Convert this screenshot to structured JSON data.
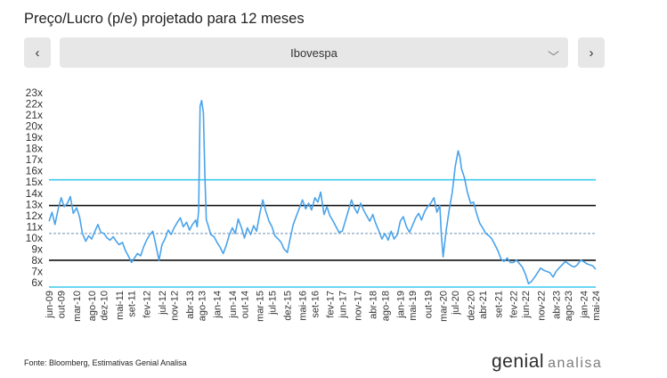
{
  "page": {
    "title": "Preço/Lucro (p/e) projetado para 12 meses"
  },
  "controls": {
    "prev_label": "‹",
    "next_label": "›",
    "prev_icon": "chevron-left-icon",
    "next_icon": "chevron-right-icon",
    "select_value": "Ibovespa",
    "select_icon": "chevron-down-icon"
  },
  "footer": {
    "source": "Fonte: Bloomberg, Estimativas Genial Analisa",
    "logo_main": "genial",
    "logo_sub": "analisa"
  },
  "chart_data": {
    "type": "line",
    "ylim": [
      6,
      23
    ],
    "yticks": [
      "23x",
      "22x",
      "21x",
      "20x",
      "19x",
      "18x",
      "17x",
      "16x",
      "15x",
      "14x",
      "13x",
      "12x",
      "11x",
      "10x",
      "9x",
      "8x",
      "7x",
      "6x"
    ],
    "ytick_values": [
      23,
      22,
      21,
      20,
      19,
      18,
      17,
      16,
      15,
      14,
      13,
      12,
      11,
      10,
      9,
      8,
      7,
      6
    ],
    "xlim": [
      2009.417,
      2024.333
    ],
    "xticks": [
      "jun-09",
      "out-09",
      "mar-10",
      "ago-10",
      "dez-10",
      "mai-11",
      "set-11",
      "fev-12",
      "jul-12",
      "nov-12",
      "abr-13",
      "ago-13",
      "jan-14",
      "jun-14",
      "out-14",
      "mar-15",
      "jul-15",
      "dez-15",
      "mai-16",
      "set-16",
      "fev-17",
      "jun-17",
      "nov-17",
      "abr-18",
      "ago-18",
      "jan-19",
      "mai-19",
      "out-19",
      "mar-20",
      "jul-20",
      "dez-20",
      "abr-21",
      "set-21",
      "fev-22",
      "jun-22",
      "nov-22",
      "abr-23",
      "ago-23",
      "jan-24",
      "mai-24"
    ],
    "xtick_values": [
      2009.417,
      2009.75,
      2010.167,
      2010.583,
      2010.917,
      2011.333,
      2011.667,
      2012.083,
      2012.5,
      2012.833,
      2013.25,
      2013.583,
      2014.0,
      2014.417,
      2014.75,
      2015.167,
      2015.5,
      2015.917,
      2016.333,
      2016.667,
      2017.083,
      2017.417,
      2017.833,
      2018.25,
      2018.583,
      2019.0,
      2019.333,
      2019.75,
      2020.167,
      2020.5,
      2020.917,
      2021.25,
      2021.667,
      2022.083,
      2022.417,
      2022.833,
      2023.25,
      2023.583,
      2024.0,
      2024.333
    ],
    "reference_lines": [
      {
        "value": 15.2,
        "style": "solid",
        "color": "#3dc9ee"
      },
      {
        "value": 12.9,
        "style": "solid",
        "color": "#111111"
      },
      {
        "value": 10.4,
        "style": "dashed",
        "color": "#6f8fb0"
      },
      {
        "value": 8.0,
        "style": "solid",
        "color": "#111111"
      },
      {
        "value": 5.6,
        "style": "solid",
        "color": "#3dc9ee"
      }
    ],
    "series": [
      {
        "color": "#4aa3ea",
        "points": [
          [
            2009.42,
            11.5
          ],
          [
            2009.5,
            12.3
          ],
          [
            2009.58,
            11.2
          ],
          [
            2009.67,
            12.6
          ],
          [
            2009.75,
            13.6
          ],
          [
            2009.83,
            12.8
          ],
          [
            2009.92,
            13.1
          ],
          [
            2010.0,
            13.7
          ],
          [
            2010.08,
            12.2
          ],
          [
            2010.17,
            12.7
          ],
          [
            2010.25,
            11.9
          ],
          [
            2010.33,
            10.4
          ],
          [
            2010.42,
            9.7
          ],
          [
            2010.5,
            10.2
          ],
          [
            2010.58,
            9.9
          ],
          [
            2010.67,
            10.6
          ],
          [
            2010.75,
            11.2
          ],
          [
            2010.83,
            10.5
          ],
          [
            2010.92,
            10.4
          ],
          [
            2011.0,
            10.0
          ],
          [
            2011.08,
            9.8
          ],
          [
            2011.17,
            10.1
          ],
          [
            2011.25,
            9.7
          ],
          [
            2011.33,
            9.4
          ],
          [
            2011.42,
            9.6
          ],
          [
            2011.5,
            8.9
          ],
          [
            2011.58,
            8.4
          ],
          [
            2011.67,
            7.8
          ],
          [
            2011.75,
            8.2
          ],
          [
            2011.83,
            8.6
          ],
          [
            2011.92,
            8.4
          ],
          [
            2012.0,
            9.2
          ],
          [
            2012.08,
            9.8
          ],
          [
            2012.17,
            10.3
          ],
          [
            2012.25,
            10.6
          ],
          [
            2012.33,
            9.4
          ],
          [
            2012.42,
            8.0
          ],
          [
            2012.5,
            9.4
          ],
          [
            2012.58,
            9.9
          ],
          [
            2012.67,
            10.7
          ],
          [
            2012.75,
            10.3
          ],
          [
            2012.83,
            10.9
          ],
          [
            2012.92,
            11.4
          ],
          [
            2013.0,
            11.8
          ],
          [
            2013.08,
            11.0
          ],
          [
            2013.17,
            11.4
          ],
          [
            2013.25,
            10.7
          ],
          [
            2013.33,
            11.2
          ],
          [
            2013.42,
            11.6
          ],
          [
            2013.46,
            11.0
          ],
          [
            2013.5,
            12.5
          ],
          [
            2013.54,
            21.8
          ],
          [
            2013.58,
            22.3
          ],
          [
            2013.63,
            21.2
          ],
          [
            2013.67,
            15.5
          ],
          [
            2013.71,
            11.6
          ],
          [
            2013.75,
            11.2
          ],
          [
            2013.83,
            10.3
          ],
          [
            2013.92,
            10.1
          ],
          [
            2014.0,
            9.6
          ],
          [
            2014.08,
            9.2
          ],
          [
            2014.17,
            8.6
          ],
          [
            2014.25,
            9.3
          ],
          [
            2014.33,
            10.2
          ],
          [
            2014.42,
            10.9
          ],
          [
            2014.5,
            10.4
          ],
          [
            2014.58,
            11.7
          ],
          [
            2014.67,
            10.9
          ],
          [
            2014.75,
            10.0
          ],
          [
            2014.83,
            10.9
          ],
          [
            2014.92,
            10.3
          ],
          [
            2015.0,
            11.1
          ],
          [
            2015.08,
            10.6
          ],
          [
            2015.17,
            12.2
          ],
          [
            2015.25,
            13.4
          ],
          [
            2015.33,
            12.4
          ],
          [
            2015.42,
            11.5
          ],
          [
            2015.5,
            11.0
          ],
          [
            2015.58,
            10.2
          ],
          [
            2015.67,
            9.9
          ],
          [
            2015.75,
            9.6
          ],
          [
            2015.83,
            9.0
          ],
          [
            2015.92,
            8.7
          ],
          [
            2016.0,
            10.0
          ],
          [
            2016.08,
            11.2
          ],
          [
            2016.17,
            12.0
          ],
          [
            2016.25,
            12.7
          ],
          [
            2016.33,
            13.4
          ],
          [
            2016.42,
            12.6
          ],
          [
            2016.5,
            13.1
          ],
          [
            2016.58,
            12.5
          ],
          [
            2016.67,
            13.6
          ],
          [
            2016.75,
            13.2
          ],
          [
            2016.83,
            14.1
          ],
          [
            2016.92,
            12.1
          ],
          [
            2017.0,
            12.8
          ],
          [
            2017.08,
            12.0
          ],
          [
            2017.17,
            11.5
          ],
          [
            2017.25,
            11.0
          ],
          [
            2017.33,
            10.5
          ],
          [
            2017.42,
            10.6
          ],
          [
            2017.5,
            11.5
          ],
          [
            2017.58,
            12.4
          ],
          [
            2017.67,
            13.4
          ],
          [
            2017.75,
            12.7
          ],
          [
            2017.83,
            12.2
          ],
          [
            2017.92,
            13.1
          ],
          [
            2018.0,
            12.5
          ],
          [
            2018.08,
            12.0
          ],
          [
            2018.17,
            11.5
          ],
          [
            2018.25,
            12.1
          ],
          [
            2018.33,
            11.3
          ],
          [
            2018.42,
            10.6
          ],
          [
            2018.5,
            9.9
          ],
          [
            2018.58,
            10.4
          ],
          [
            2018.67,
            9.8
          ],
          [
            2018.75,
            10.6
          ],
          [
            2018.83,
            9.9
          ],
          [
            2018.92,
            10.3
          ],
          [
            2019.0,
            11.5
          ],
          [
            2019.08,
            11.9
          ],
          [
            2019.17,
            11.0
          ],
          [
            2019.25,
            10.5
          ],
          [
            2019.33,
            11.1
          ],
          [
            2019.42,
            11.8
          ],
          [
            2019.5,
            12.2
          ],
          [
            2019.58,
            11.6
          ],
          [
            2019.67,
            12.4
          ],
          [
            2019.75,
            12.8
          ],
          [
            2019.83,
            13.1
          ],
          [
            2019.92,
            13.6
          ],
          [
            2020.0,
            12.3
          ],
          [
            2020.08,
            12.9
          ],
          [
            2020.12,
            10.3
          ],
          [
            2020.17,
            8.3
          ],
          [
            2020.25,
            10.6
          ],
          [
            2020.33,
            12.4
          ],
          [
            2020.42,
            14.1
          ],
          [
            2020.5,
            16.4
          ],
          [
            2020.58,
            17.8
          ],
          [
            2020.63,
            17.2
          ],
          [
            2020.67,
            16.2
          ],
          [
            2020.75,
            15.4
          ],
          [
            2020.83,
            14.1
          ],
          [
            2020.92,
            13.1
          ],
          [
            2021.0,
            13.2
          ],
          [
            2021.08,
            12.2
          ],
          [
            2021.17,
            11.3
          ],
          [
            2021.25,
            10.9
          ],
          [
            2021.33,
            10.4
          ],
          [
            2021.42,
            10.2
          ],
          [
            2021.5,
            9.9
          ],
          [
            2021.58,
            9.4
          ],
          [
            2021.67,
            8.8
          ],
          [
            2021.75,
            8.1
          ],
          [
            2021.83,
            7.9
          ],
          [
            2021.92,
            8.2
          ],
          [
            2022.0,
            7.8
          ],
          [
            2022.08,
            7.8
          ],
          [
            2022.17,
            8.0
          ],
          [
            2022.25,
            7.7
          ],
          [
            2022.33,
            7.4
          ],
          [
            2022.42,
            6.7
          ],
          [
            2022.5,
            5.9
          ],
          [
            2022.58,
            6.1
          ],
          [
            2022.67,
            6.5
          ],
          [
            2022.75,
            6.9
          ],
          [
            2022.83,
            7.3
          ],
          [
            2022.92,
            7.1
          ],
          [
            2023.0,
            7.0
          ],
          [
            2023.08,
            6.9
          ],
          [
            2023.17,
            6.5
          ],
          [
            2023.25,
            7.0
          ],
          [
            2023.33,
            7.3
          ],
          [
            2023.42,
            7.6
          ],
          [
            2023.5,
            7.9
          ],
          [
            2023.58,
            7.7
          ],
          [
            2023.67,
            7.5
          ],
          [
            2023.75,
            7.4
          ],
          [
            2023.83,
            7.6
          ],
          [
            2023.92,
            8.0
          ],
          [
            2024.0,
            7.9
          ],
          [
            2024.08,
            7.7
          ],
          [
            2024.17,
            7.6
          ],
          [
            2024.25,
            7.5
          ],
          [
            2024.33,
            7.2
          ]
        ]
      }
    ]
  }
}
